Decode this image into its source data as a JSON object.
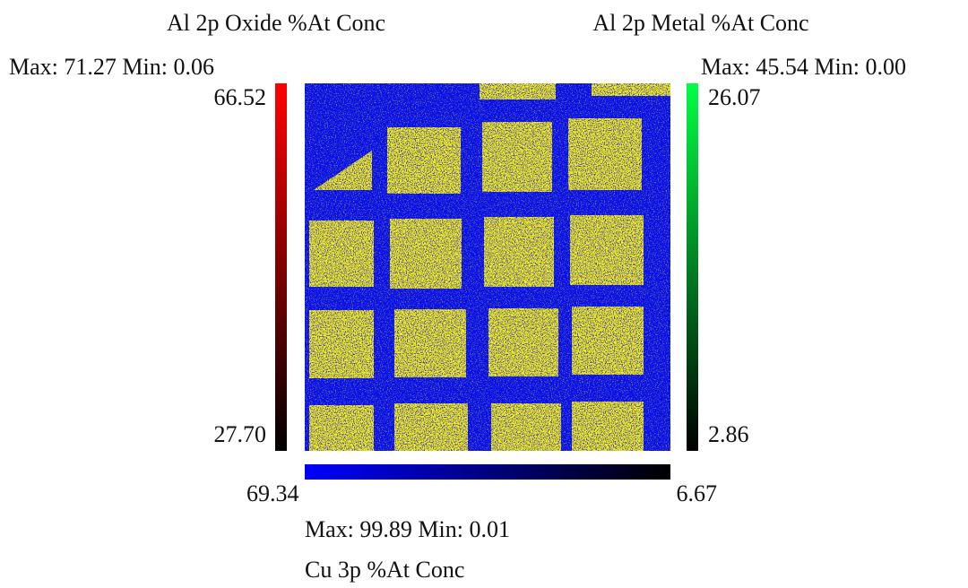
{
  "oxide": {
    "title": "Al 2p Oxide %At Conc",
    "range": "Max: 71.27 Min: 0.06",
    "scale_top": "66.52",
    "scale_bottom": "27.70"
  },
  "metal": {
    "title": "Al 2p Metal %At Conc",
    "range": "Max: 45.54 Min: 0.00",
    "scale_top": "26.07",
    "scale_bottom": "2.86"
  },
  "copper": {
    "title": "Cu 3p %At Conc",
    "range": "Max: 99.89 Min: 0.01",
    "scale_left": "69.34",
    "scale_right": "6.67"
  }
}
